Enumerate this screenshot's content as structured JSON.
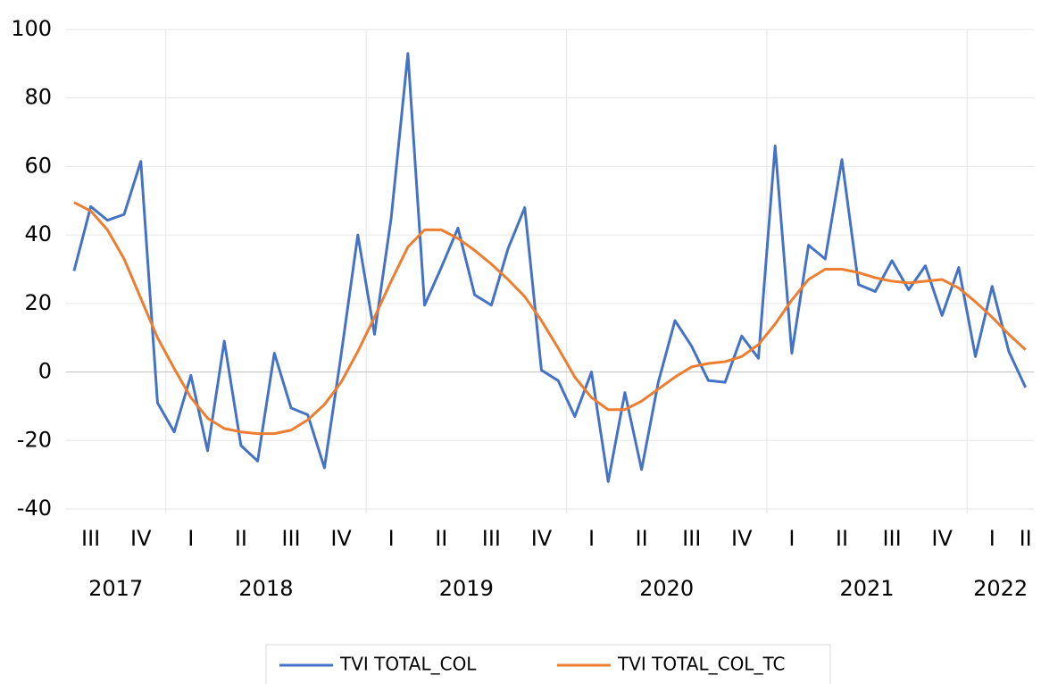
{
  "chart_data": {
    "type": "line",
    "categories": [
      null,
      "III",
      null,
      null,
      "IV",
      null,
      null,
      "I",
      null,
      null,
      "II",
      null,
      null,
      "III",
      null,
      null,
      "IV",
      null,
      null,
      "I",
      null,
      null,
      "II",
      null,
      null,
      "III",
      null,
      null,
      "IV",
      null,
      null,
      "I",
      null,
      null,
      "II",
      null,
      null,
      "III",
      null,
      null,
      "IV",
      null,
      null,
      "I",
      null,
      null,
      "II",
      null,
      null,
      "III",
      null,
      null,
      "IV",
      null,
      null,
      "I",
      null,
      "II"
    ],
    "groups": [
      {
        "label": "2017",
        "count": 6
      },
      {
        "label": "2018",
        "count": 12
      },
      {
        "label": "2019",
        "count": 12
      },
      {
        "label": "2020",
        "count": 12
      },
      {
        "label": "2021",
        "count": 12
      },
      {
        "label": "2022",
        "count": 4
      }
    ],
    "series": [
      {
        "name": "TVI TOTAL_COL",
        "color": "#4472c4",
        "values": [
          29.5,
          48.3,
          44.3,
          46,
          61.5,
          -9,
          -17.5,
          -1,
          -23,
          9,
          -21.5,
          -26,
          5.5,
          -10.5,
          -12.5,
          -28,
          5,
          40,
          11,
          45,
          93,
          19.5,
          30.5,
          42,
          22.5,
          19.5,
          36,
          48,
          0.5,
          -2.5,
          -13,
          0,
          -32,
          -6,
          -28.5,
          -3,
          15,
          7.5,
          -2.5,
          -3,
          10.5,
          4,
          66,
          5.5,
          37,
          33,
          62,
          25.5,
          23.5,
          32.5,
          24,
          31,
          16.5,
          30.5,
          4.5,
          25,
          6,
          -4.5
        ]
      },
      {
        "name": "TVI TOTAL_COL_TC",
        "color": "#ed7d31",
        "values": [
          49.5,
          47,
          41.5,
          33,
          21.5,
          10,
          1,
          -7.5,
          -13.5,
          -16.5,
          -17.5,
          -18,
          -18,
          -17,
          -14,
          -9.5,
          -3,
          6,
          16,
          26.5,
          36.5,
          41.5,
          41.5,
          39,
          35.5,
          31.5,
          27,
          22,
          15,
          7,
          -1.5,
          -7.5,
          -11,
          -11,
          -8.5,
          -5,
          -1.5,
          1.5,
          2.5,
          3,
          4.5,
          8,
          14,
          21,
          27,
          30,
          30,
          29,
          27.5,
          26.5,
          26,
          26.5,
          27,
          24.5,
          20.5,
          16,
          11,
          6.5
        ]
      }
    ],
    "ylim": [
      -40,
      100
    ],
    "yticks": [
      -40,
      -20,
      0,
      20,
      40,
      60,
      80,
      100
    ],
    "grid": true,
    "legend": "bottom"
  }
}
